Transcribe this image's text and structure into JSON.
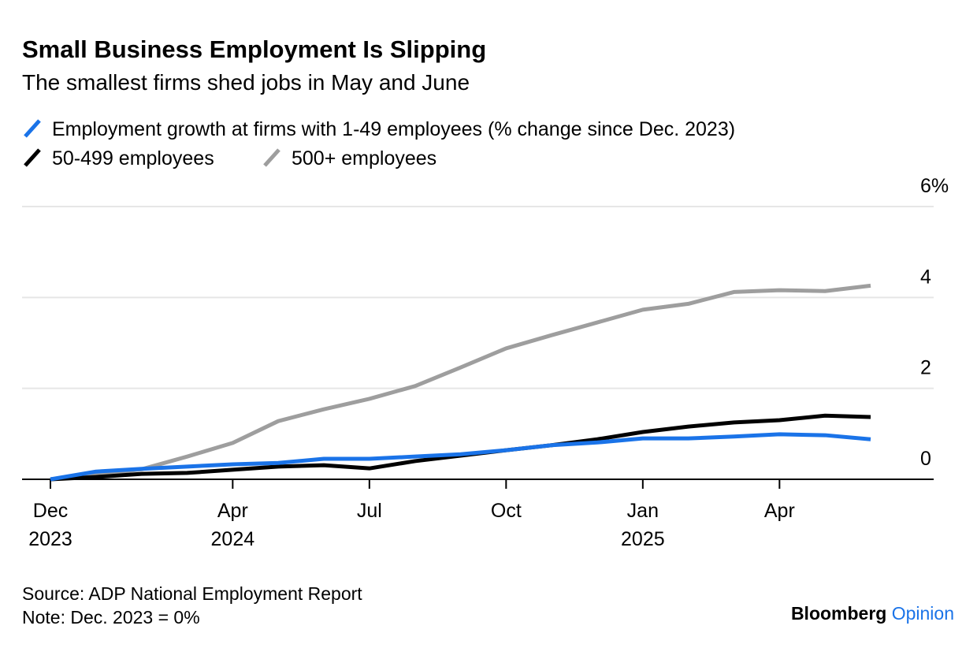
{
  "chart_data": {
    "type": "line",
    "title": "Small Business Employment Is Slipping",
    "subtitle": "The smallest firms shed jobs in May and June",
    "categories": [
      "Dec 2023",
      null,
      null,
      null,
      "Apr 2024",
      null,
      null,
      "Jul",
      null,
      null,
      "Oct",
      null,
      null,
      "Jan 2025",
      null,
      null,
      "Apr",
      null,
      null
    ],
    "series": [
      {
        "name": "Employment growth at firms with 1-49 employees (% change since Dec. 2023)",
        "color": "#1a73e8",
        "values": [
          0,
          0.17,
          0.23,
          0.28,
          0.33,
          0.36,
          0.45,
          0.45,
          0.5,
          0.55,
          0.64,
          0.75,
          0.81,
          0.9,
          0.9,
          0.94,
          0.99,
          0.97,
          0.88
        ]
      },
      {
        "name": "50-499 employees",
        "color": "#000000",
        "values": [
          0,
          0.05,
          0.12,
          0.14,
          0.21,
          0.28,
          0.31,
          0.24,
          0.4,
          0.52,
          0.64,
          0.75,
          0.88,
          1.04,
          1.16,
          1.25,
          1.3,
          1.4,
          1.37
        ]
      },
      {
        "name": "500+ employees",
        "color": "#9e9e9e",
        "values": [
          0,
          0.1,
          0.22,
          0.5,
          0.8,
          1.28,
          1.54,
          1.77,
          2.05,
          2.46,
          2.88,
          3.17,
          3.45,
          3.73,
          3.86,
          4.12,
          4.16,
          4.14,
          4.26
        ]
      }
    ],
    "ylim": [
      0,
      6
    ],
    "yticks": [
      0,
      2,
      4,
      {
        "value": 6,
        "label": "6%"
      }
    ],
    "grid": true,
    "source": "Source: ADP National Employment Report",
    "note": "Note: Dec. 2023 = 0%",
    "branding": {
      "name": "Bloomberg",
      "section": "Opinion"
    }
  }
}
